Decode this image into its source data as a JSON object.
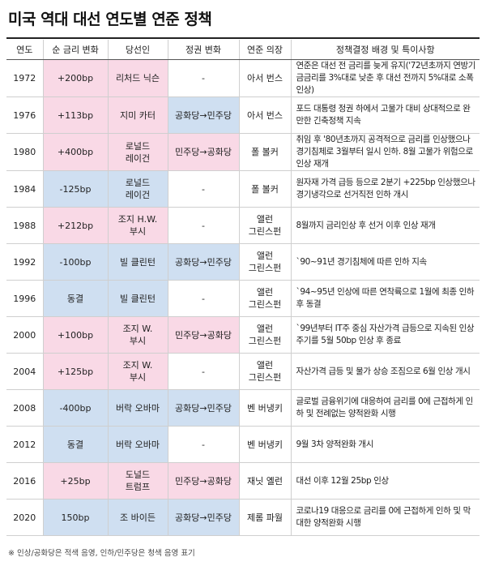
{
  "title": "미국 역대 대선 연도별 연준 정책",
  "headers": [
    "연도",
    "순 금리 변화",
    "당선인",
    "정권 변화",
    "연준 의장",
    "정책결정 배경 및 특이사항"
  ],
  "rows": [
    {
      "year": "1972",
      "rate": "+200bp",
      "winner": "리처드 닉슨",
      "change": "-",
      "chair": "아서 번스",
      "background": "연준은 대선 전 금리를 늦게 유지('72년초까지 연방기금금리를 3%대로 낮춘 후 대선 전까지 5%대로 소폭 인상)",
      "color": "pink"
    },
    {
      "year": "1976",
      "rate": "+113bp",
      "winner": "지미 카터",
      "change": "공화당→민주당",
      "chair": "아서 번스",
      "background": "포드 대통령 정권 하에서 고물가 대비 상대적으로 완만한 긴축정책 지속",
      "color": "pink"
    },
    {
      "year": "1980",
      "rate": "+400bp",
      "winner": "로널드\n레이건",
      "change": "민주당→공화당",
      "chair": "폴 볼커",
      "background": "취임 후 '80년초까지 공격적으로 금리를 인상했으나 경기침체로 3월부터 일시 인하. 8월 고물가 위험으로 인상 재개",
      "color": "pink"
    },
    {
      "year": "1984",
      "rate": "-125bp",
      "winner": "로널드\n레이건",
      "change": "-",
      "chair": "폴 볼커",
      "background": "원자재 가격 급등 등으로 2분기 +225bp 인상했으나 경기냉각으로 선거직전 인하 개시",
      "color": "blue"
    },
    {
      "year": "1988",
      "rate": "+212bp",
      "winner": "조지 H.W.\n부시",
      "change": "-",
      "chair": "앨런\n그린스펀",
      "background": "8월까지 금리인상 후 선거 이후 인상 재개",
      "color": "pink"
    },
    {
      "year": "1992",
      "rate": "-100bp",
      "winner": "빌 클린턴",
      "change": "공화당→민주당",
      "chair": "앨런\n그린스펀",
      "background": "`90~91년 경기침체에 따른 인하 지속",
      "color": "blue"
    },
    {
      "year": "1996",
      "rate": "동결",
      "winner": "빌 클린턴",
      "change": "-",
      "chair": "앨런\n그린스펀",
      "background": "`94~95년 인상에 따른 연착륙으로 1월에 최종 인하 후 동결",
      "color": "blue"
    },
    {
      "year": "2000",
      "rate": "+100bp",
      "winner": "조지 W.\n부시",
      "change": "민주당→공화당",
      "chair": "앨런\n그린스펀",
      "background": "`99년부터 IT주 중심 자산가격 급등으로 지속된 인상주기를 5월 50bp 인상 후 종료",
      "color": "pink"
    },
    {
      "year": "2004",
      "rate": "+125bp",
      "winner": "조지 W.\n부시",
      "change": "-",
      "chair": "앨런\n그린스펀",
      "background": "자산가격 급등 및 물가 상승 조짐으로 6월 인상 개시",
      "color": "pink"
    },
    {
      "year": "2008",
      "rate": "-400bp",
      "winner": "버락 오바마",
      "change": "공화당→민주당",
      "chair": "벤 버냉키",
      "background": "글로벌 금융위기에 대응하여 금리를 0에 근접하게 인하 및 전례없는 양적완화 시행",
      "color": "blue"
    },
    {
      "year": "2012",
      "rate": "동결",
      "winner": "버락 오바마",
      "change": "-",
      "chair": "벤 버냉키",
      "background": "9월 3차 양적완화 개시",
      "color": "blue"
    },
    {
      "year": "2016",
      "rate": "+25bp",
      "winner": "도널드\n트럼프",
      "change": "민주당→공화당",
      "chair": "재닛 옐런",
      "background": "대선 이후 12월 25bp 인상",
      "color": "pink"
    },
    {
      "year": "2020",
      "rate": "150bp",
      "winner": "조 바이든",
      "change": "공화당→민주당",
      "chair": "제롬 파월",
      "background": "코로나19 대응으로 금리를 0에 근접하게 인하 및 막대한 양적완화 시행",
      "color": "blue"
    }
  ],
  "footnote": "※ 인상/공화당은 적색 음영, 인하/민주당은 청색 음영 표기",
  "colors": {
    "pink": "#f9d9e6",
    "blue": "#cfdff1"
  }
}
